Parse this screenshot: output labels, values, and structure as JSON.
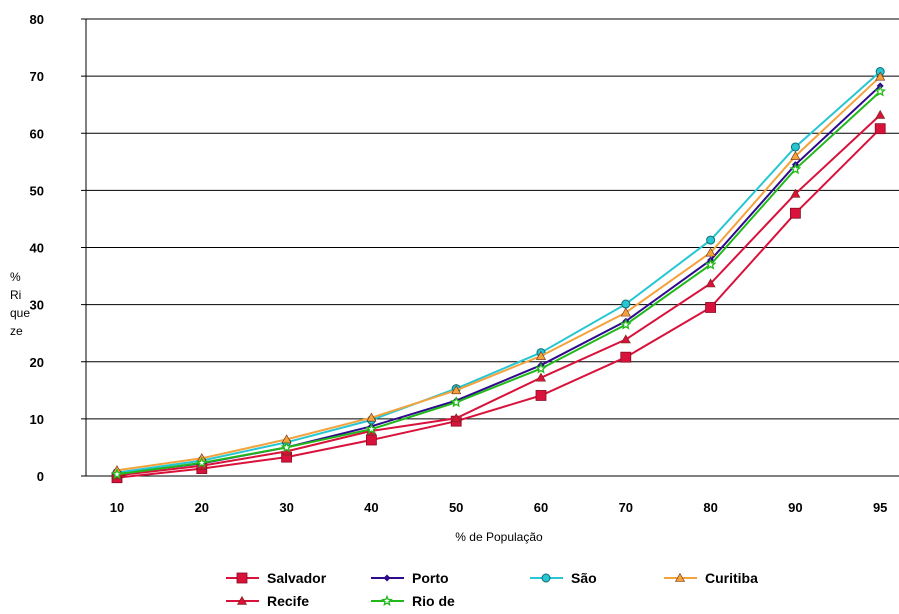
{
  "chart_data": {
    "type": "line",
    "x": [
      "10",
      "20",
      "30",
      "40",
      "50",
      "60",
      "70",
      "80",
      "90",
      "95"
    ],
    "xlabel": "% de População",
    "ylabel_lines": [
      "%",
      "Ri",
      "que",
      "ze"
    ],
    "ylim": [
      0,
      80
    ],
    "yticks": [
      0,
      10,
      20,
      30,
      40,
      50,
      60,
      70,
      80
    ],
    "grid": "horizontal",
    "legend_position": "bottom",
    "series": [
      {
        "name": "Salvador",
        "color": "#d8123b",
        "marker": "square",
        "values": [
          -0.3,
          1.3,
          3.3,
          6.3,
          9.6,
          14.1,
          20.8,
          29.5,
          46.0,
          60.8
        ]
      },
      {
        "name": "Porto",
        "color": "#2e0a8c",
        "marker": "diamond",
        "values": [
          0.4,
          2.2,
          5.0,
          8.7,
          13.2,
          19.4,
          27.1,
          37.8,
          54.5,
          68.3
        ]
      },
      {
        "name": "São",
        "color": "#27c6d3",
        "marker": "circle",
        "values": [
          0.6,
          2.7,
          5.9,
          9.8,
          15.3,
          21.6,
          30.1,
          41.3,
          57.6,
          70.8
        ]
      },
      {
        "name": "Curitiba",
        "color": "#f3a23c",
        "marker": "triangle",
        "values": [
          1.0,
          3.1,
          6.4,
          10.2,
          15.0,
          21.0,
          28.6,
          39.1,
          56.0,
          69.9
        ]
      },
      {
        "name": "Recife",
        "color": "#d8123b",
        "marker": "triangle",
        "values": [
          0.1,
          1.8,
          4.3,
          7.9,
          10.1,
          17.2,
          23.9,
          33.7,
          49.4,
          63.2
        ]
      },
      {
        "name": "Rio de",
        "color": "#22b81b",
        "marker": "star",
        "values": [
          0.3,
          2.3,
          5.0,
          8.2,
          12.9,
          18.8,
          26.5,
          37.0,
          53.7,
          67.3
        ]
      }
    ]
  }
}
